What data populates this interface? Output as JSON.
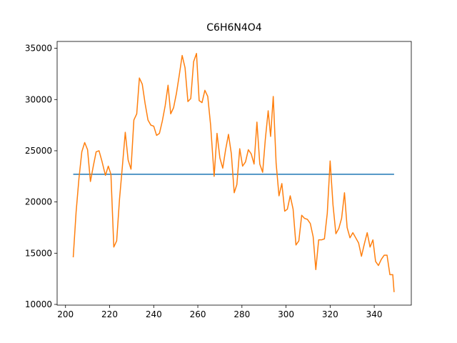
{
  "chart_data": {
    "type": "line",
    "title": "C6H6N4O4",
    "xlim": [
      196.2,
      356.8
    ],
    "ylim": [
      9930,
      35670
    ],
    "xticks": [
      200,
      220,
      240,
      260,
      280,
      300,
      320,
      340
    ],
    "yticks": [
      10000,
      15000,
      20000,
      25000,
      30000,
      35000
    ],
    "series": [
      {
        "color": "#1f77b4",
        "x": [
          203.5,
          349
        ],
        "values": [
          22700,
          22700
        ]
      },
      {
        "color": "#ff7f0e",
        "x": [
          203.5,
          204.8,
          206.1,
          207.4,
          208.7,
          210,
          211.3,
          212.6,
          213.9,
          215.2,
          216.5,
          218.1,
          219.4,
          220.6,
          221.9,
          223.2,
          224.5,
          225.8,
          227.1,
          228.4,
          229.7,
          231,
          232.3,
          233.5,
          234.8,
          236.1,
          237.4,
          238.7,
          240,
          241.3,
          242.6,
          243.9,
          245.2,
          246.5,
          247.7,
          249,
          250.3,
          251.6,
          252.9,
          254.2,
          255.5,
          256.8,
          258.1,
          259.4,
          260.6,
          261.9,
          263.2,
          264.5,
          265.8,
          267.4,
          268.7,
          270,
          271.3,
          272.6,
          273.9,
          275.2,
          276.5,
          277.7,
          279,
          280.3,
          281.6,
          282.9,
          284.2,
          285.5,
          286.8,
          288.1,
          289.4,
          290.6,
          291.9,
          293,
          294.2,
          295.5,
          296.8,
          298.1,
          299.4,
          300.6,
          301.9,
          303.2,
          304.5,
          305.8,
          307.1,
          308.4,
          309.7,
          311,
          312.3,
          313.5,
          314.8,
          316.1,
          317.4,
          318.7,
          320,
          321.3,
          322.6,
          323.9,
          325.2,
          326.5,
          327.7,
          329,
          330.3,
          331.6,
          332.9,
          334.2,
          335.5,
          336.8,
          338.1,
          339.4,
          340.6,
          341.9,
          343.2,
          344.5,
          345.8,
          347.1,
          348.4,
          349
        ],
        "values": [
          14600,
          19000,
          22300,
          24900,
          25800,
          25100,
          22000,
          23500,
          24900,
          25000,
          24000,
          22600,
          23500,
          22700,
          15600,
          16200,
          20300,
          23500,
          26800,
          24100,
          23200,
          28000,
          28600,
          32100,
          31500,
          29600,
          28000,
          27500,
          27400,
          26500,
          26700,
          27900,
          29400,
          31400,
          28600,
          29200,
          30600,
          32400,
          34300,
          33100,
          29800,
          30100,
          33700,
          34500,
          29900,
          29700,
          30900,
          30300,
          27500,
          22500,
          26700,
          24300,
          23300,
          25100,
          26600,
          24700,
          20900,
          21700,
          25200,
          23500,
          23900,
          25100,
          24700,
          23700,
          27800,
          23700,
          22900,
          26100,
          28900,
          26400,
          30300,
          23800,
          20600,
          21800,
          19100,
          19300,
          20600,
          19300,
          15800,
          16200,
          18700,
          18400,
          18300,
          17900,
          16600,
          13400,
          16300,
          16300,
          16400,
          18900,
          24000,
          19700,
          16900,
          17400,
          18400,
          20900,
          17500,
          16500,
          17000,
          16500,
          16000,
          14700,
          15900,
          17000,
          15600,
          16300,
          14200,
          13800,
          14400,
          14800,
          14800,
          12900,
          12900,
          11200
        ]
      }
    ]
  }
}
